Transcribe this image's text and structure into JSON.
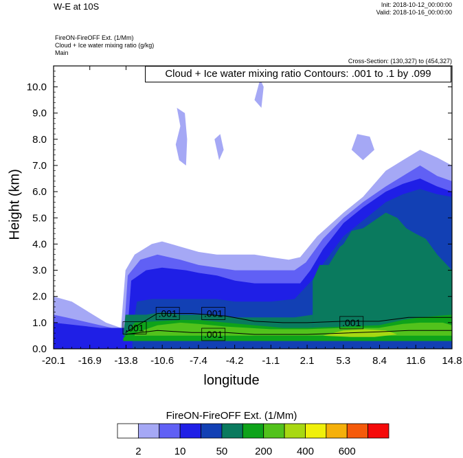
{
  "header": {
    "title": "W-E at 10S",
    "init": "Init: 2018-10-12_00:00:00",
    "valid": "Valid: 2018-10-16_00:00:00",
    "var_line1": "FireON-FireOFF Ext.   (1/Mm)",
    "var_line2": "Cloud + Ice water mixing ratio   (g/kg)",
    "var_line3": "Main",
    "cross_section": "Cross-Section: (130,327) to (454,327)"
  },
  "contour_info": "Cloud + Ice water mixing ratio Contours: .001 to .1 by .099",
  "contour_labels": [
    ".001",
    ".001",
    ".001",
    ".001",
    ".001"
  ],
  "colorbar": {
    "title": "FireON-FireOFF Ext.  (1/Mm)",
    "colors": [
      "#ffffff",
      "#a5a8f5",
      "#6060f5",
      "#1f1fe6",
      "#1240b4",
      "#0a7a5e",
      "#0ea31a",
      "#52c21c",
      "#a8d812",
      "#f0f00a",
      "#f5b00a",
      "#f55a0a",
      "#f50a0a"
    ],
    "tick_labels": [
      "2",
      "10",
      "50",
      "200",
      "400",
      "600"
    ]
  },
  "chart_data": {
    "type": "heatmap",
    "title": "W-E at 10S",
    "xlabel": "longitude",
    "ylabel": "Height (km)",
    "x_ticks": [
      "-20.1",
      "-16.9",
      "-13.8",
      "-10.6",
      "-7.4",
      "-4.2",
      "-1.1",
      "2.1",
      "5.3",
      "8.4",
      "11.6",
      "14.8"
    ],
    "y_ticks": [
      "0.0",
      "1.0",
      "2.0",
      "3.0",
      "4.0",
      "5.0",
      "6.0",
      "7.0",
      "8.0",
      "9.0",
      "10.0"
    ],
    "xlim": [
      -20.1,
      14.8
    ],
    "ylim": [
      0.0,
      10.8
    ],
    "fill_regions": [
      {
        "level": 1,
        "points": [
          [
            -14.2,
            0.8
          ],
          [
            -13.8,
            3.0
          ],
          [
            -13.0,
            3.6
          ],
          [
            -11.5,
            4.0
          ],
          [
            -10.6,
            4.1
          ],
          [
            -9.0,
            3.9
          ],
          [
            -7.4,
            3.7
          ],
          [
            -5.8,
            3.6
          ],
          [
            -4.2,
            3.6
          ],
          [
            -2.5,
            3.6
          ],
          [
            -1.1,
            3.5
          ],
          [
            0.5,
            3.4
          ],
          [
            1.5,
            3.5
          ],
          [
            3.0,
            4.3
          ],
          [
            5.3,
            5.2
          ],
          [
            7.0,
            5.8
          ],
          [
            9.0,
            6.8
          ],
          [
            10.5,
            7.2
          ],
          [
            12.0,
            7.6
          ],
          [
            13.5,
            7.3
          ],
          [
            14.8,
            7.0
          ],
          [
            14.8,
            0
          ],
          [
            -14.2,
            0
          ]
        ]
      },
      {
        "level": 1,
        "points": [
          [
            -20.1,
            0
          ],
          [
            -20.1,
            2.0
          ],
          [
            -18.5,
            1.8
          ],
          [
            -17.0,
            1.4
          ],
          [
            -15.5,
            1.0
          ],
          [
            -14.2,
            0.8
          ],
          [
            -14.2,
            0
          ]
        ]
      },
      {
        "level": 1,
        "points": [
          [
            -9.3,
            9.2
          ],
          [
            -9.0,
            8.5
          ],
          [
            -9.4,
            7.8
          ],
          [
            -9.1,
            7.2
          ],
          [
            -8.5,
            7.0
          ],
          [
            -8.4,
            8.0
          ],
          [
            -8.6,
            9.0
          ]
        ]
      },
      {
        "level": 1,
        "points": [
          [
            -6.0,
            8.0
          ],
          [
            -5.6,
            7.2
          ],
          [
            -5.2,
            7.6
          ],
          [
            -5.5,
            8.2
          ]
        ]
      },
      {
        "level": 1,
        "points": [
          [
            -2.5,
            9.5
          ],
          [
            -2.0,
            10.3
          ],
          [
            -1.7,
            10.0
          ],
          [
            -1.9,
            9.2
          ]
        ]
      },
      {
        "level": 1,
        "points": [
          [
            6.0,
            7.6
          ],
          [
            6.5,
            8.2
          ],
          [
            7.6,
            8.1
          ],
          [
            8.0,
            7.6
          ],
          [
            7.0,
            7.2
          ]
        ]
      },
      {
        "level": 2,
        "points": [
          [
            -13.9,
            0.8
          ],
          [
            -13.6,
            2.8
          ],
          [
            -12.5,
            3.4
          ],
          [
            -11.0,
            3.6
          ],
          [
            -9.0,
            3.4
          ],
          [
            -7.4,
            3.2
          ],
          [
            -5.8,
            3.1
          ],
          [
            -4.2,
            3.0
          ],
          [
            -2.5,
            3.0
          ],
          [
            -1.1,
            3.0
          ],
          [
            1.0,
            3.0
          ],
          [
            2.0,
            3.3
          ],
          [
            3.5,
            4.2
          ],
          [
            5.3,
            5.0
          ],
          [
            7.0,
            5.6
          ],
          [
            9.0,
            6.2
          ],
          [
            10.5,
            6.6
          ],
          [
            12.0,
            7.0
          ],
          [
            13.5,
            6.6
          ],
          [
            14.8,
            6.4
          ],
          [
            14.8,
            0
          ],
          [
            -13.9,
            0
          ]
        ]
      },
      {
        "level": 2,
        "points": [
          [
            -20.1,
            0
          ],
          [
            -20.1,
            1.3
          ],
          [
            -19.0,
            1.2
          ],
          [
            -17.0,
            1.0
          ],
          [
            -15.0,
            0.8
          ],
          [
            -13.9,
            0.8
          ],
          [
            -13.9,
            0
          ]
        ]
      },
      {
        "level": 3,
        "points": [
          [
            -13.6,
            0.8
          ],
          [
            -13.3,
            2.6
          ],
          [
            -12.0,
            3.0
          ],
          [
            -10.6,
            3.1
          ],
          [
            -8.5,
            3.0
          ],
          [
            -7.4,
            2.9
          ],
          [
            -5.8,
            2.8
          ],
          [
            -4.2,
            2.6
          ],
          [
            -2.5,
            2.5
          ],
          [
            -1.1,
            2.5
          ],
          [
            1.5,
            2.5
          ],
          [
            2.4,
            3.0
          ],
          [
            3.5,
            3.8
          ],
          [
            5.3,
            4.8
          ],
          [
            7.0,
            5.4
          ],
          [
            9.0,
            6.0
          ],
          [
            10.5,
            6.3
          ],
          [
            12.0,
            6.5
          ],
          [
            13.5,
            6.2
          ],
          [
            14.8,
            6.0
          ],
          [
            14.8,
            0
          ],
          [
            -13.6,
            0
          ]
        ]
      },
      {
        "level": 3,
        "points": [
          [
            -20.1,
            0
          ],
          [
            -20.1,
            1.0
          ],
          [
            -18.0,
            0.9
          ],
          [
            -16.0,
            0.8
          ],
          [
            -13.6,
            0.8
          ],
          [
            -13.6,
            0
          ]
        ]
      },
      {
        "level": 4,
        "points": [
          [
            -13.2,
            0.7
          ],
          [
            -12.8,
            1.8
          ],
          [
            -11.5,
            1.9
          ],
          [
            -10.6,
            1.9
          ],
          [
            -9.0,
            1.9
          ],
          [
            -7.4,
            1.9
          ],
          [
            -5.8,
            1.9
          ],
          [
            -4.2,
            1.8
          ],
          [
            -2.5,
            1.8
          ],
          [
            -1.1,
            1.8
          ],
          [
            1.0,
            1.9
          ],
          [
            2.5,
            2.6
          ],
          [
            3.6,
            3.3
          ],
          [
            5.3,
            4.3
          ],
          [
            7.0,
            4.9
          ],
          [
            9.0,
            5.6
          ],
          [
            10.5,
            5.9
          ],
          [
            12.0,
            6.1
          ],
          [
            13.5,
            5.9
          ],
          [
            14.8,
            5.8
          ],
          [
            14.8,
            0
          ],
          [
            -13.2,
            0
          ]
        ]
      },
      {
        "level": 5,
        "points": [
          [
            2.6,
            2.6
          ],
          [
            3.2,
            3.2
          ],
          [
            4.0,
            3.2
          ],
          [
            5.0,
            3.9
          ],
          [
            5.3,
            4.0
          ],
          [
            6.0,
            4.5
          ],
          [
            7.0,
            4.6
          ],
          [
            8.0,
            4.9
          ],
          [
            9.0,
            5.2
          ],
          [
            10.0,
            5.0
          ],
          [
            10.8,
            4.6
          ],
          [
            11.6,
            4.4
          ],
          [
            12.5,
            4.2
          ],
          [
            13.5,
            3.6
          ],
          [
            14.8,
            3.0
          ],
          [
            14.8,
            0.5
          ],
          [
            2.6,
            0.5
          ]
        ]
      },
      {
        "level": 5,
        "points": [
          [
            -14.0,
            0.5
          ],
          [
            -13.8,
            1.3
          ],
          [
            -12.0,
            1.3
          ],
          [
            -10.6,
            1.4
          ],
          [
            -9.0,
            1.3
          ],
          [
            -7.4,
            1.3
          ],
          [
            -5.8,
            1.3
          ],
          [
            -4.2,
            1.2
          ],
          [
            -2.5,
            1.2
          ],
          [
            -1.1,
            1.2
          ],
          [
            1.0,
            1.2
          ],
          [
            2.6,
            1.3
          ],
          [
            2.6,
            0.5
          ]
        ]
      },
      {
        "level": 6,
        "points": [
          [
            -14.0,
            0.4
          ],
          [
            -13.0,
            1.0
          ],
          [
            -11.0,
            1.05
          ],
          [
            -9.0,
            1.1
          ],
          [
            -7.4,
            1.1
          ],
          [
            -5.0,
            1.0
          ],
          [
            -2.5,
            0.9
          ],
          [
            0.0,
            0.8
          ],
          [
            2.1,
            0.8
          ],
          [
            5.3,
            0.85
          ],
          [
            8.4,
            0.9
          ],
          [
            10.5,
            1.1
          ],
          [
            12.0,
            1.2
          ],
          [
            14.8,
            1.3
          ],
          [
            14.8,
            0.3
          ],
          [
            -14.0,
            0.3
          ]
        ]
      },
      {
        "level": 7,
        "points": [
          [
            -13.0,
            0.6
          ],
          [
            -11.0,
            0.9
          ],
          [
            -9.0,
            1.0
          ],
          [
            -7.4,
            0.95
          ],
          [
            -5.0,
            0.85
          ],
          [
            -3.0,
            0.8
          ],
          [
            -1.1,
            0.75
          ],
          [
            2.1,
            0.75
          ],
          [
            5.3,
            0.8
          ],
          [
            8.4,
            0.8
          ],
          [
            10.5,
            0.95
          ],
          [
            12.0,
            1.0
          ],
          [
            14.0,
            1.0
          ],
          [
            14.8,
            0.9
          ],
          [
            14.8,
            0.5
          ],
          [
            -13.0,
            0.5
          ]
        ]
      },
      {
        "level": 8,
        "points": [
          [
            3.5,
            0.5
          ],
          [
            5.3,
            0.7
          ],
          [
            7.0,
            0.75
          ],
          [
            9.0,
            0.7
          ],
          [
            10.0,
            0.55
          ],
          [
            8.0,
            0.45
          ],
          [
            6.0,
            0.45
          ]
        ]
      }
    ],
    "contours": [
      {
        "points": [
          [
            -13.8,
            0.62
          ],
          [
            -11.0,
            1.35
          ],
          [
            -8.0,
            1.35
          ],
          [
            -5.0,
            1.25
          ],
          [
            -2.5,
            1.05
          ],
          [
            0.0,
            1.0
          ],
          [
            2.1,
            1.0
          ],
          [
            5.3,
            1.05
          ],
          [
            8.4,
            1.05
          ],
          [
            11.0,
            1.2
          ],
          [
            14.8,
            1.2
          ]
        ]
      },
      {
        "points": [
          [
            -13.8,
            0.55
          ],
          [
            -11.0,
            0.7
          ],
          [
            -8.0,
            0.62
          ],
          [
            -5.0,
            0.62
          ],
          [
            -2.5,
            0.55
          ],
          [
            0.0,
            0.55
          ],
          [
            2.1,
            0.55
          ],
          [
            5.3,
            0.6
          ],
          [
            8.4,
            0.65
          ],
          [
            11.0,
            0.7
          ],
          [
            14.8,
            0.7
          ]
        ]
      }
    ],
    "contour_label_positions": [
      [
        -13.0,
        0.8
      ],
      [
        -10.1,
        1.35
      ],
      [
        -6.1,
        1.35
      ],
      [
        -6.1,
        0.55
      ],
      [
        6.0,
        1.0
      ]
    ]
  }
}
